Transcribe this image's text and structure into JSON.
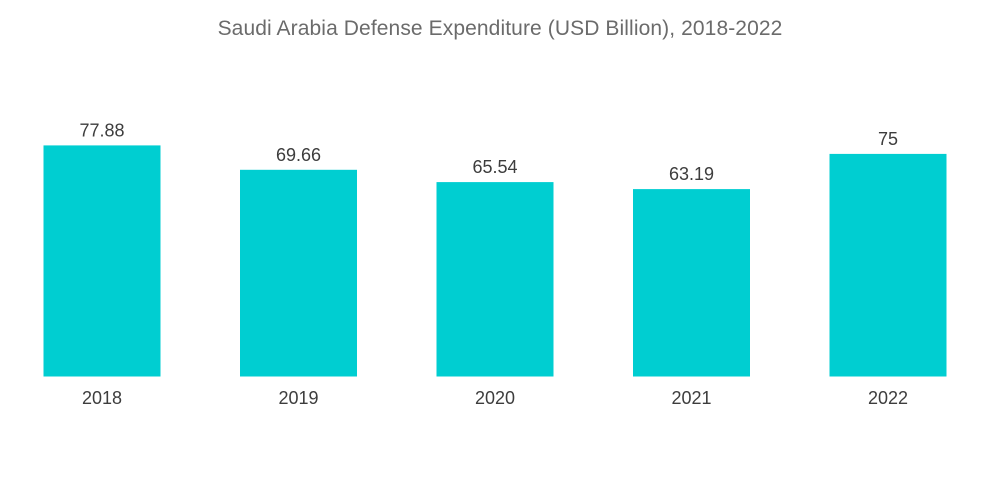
{
  "chart_data": {
    "type": "bar",
    "title": "Saudi Arabia Defense Expenditure (USD Billion), 2018-2022",
    "categories": [
      "2018",
      "2019",
      "2020",
      "2021",
      "2022"
    ],
    "values": [
      77.88,
      69.66,
      65.54,
      63.19,
      75
    ],
    "value_labels": [
      "77.88",
      "69.66",
      "65.54",
      "63.19",
      "75"
    ],
    "xlabel": "",
    "ylabel": "",
    "ylim": [
      0,
      78
    ],
    "grid": false,
    "legend": "none",
    "bar_color": "#00ced1"
  }
}
